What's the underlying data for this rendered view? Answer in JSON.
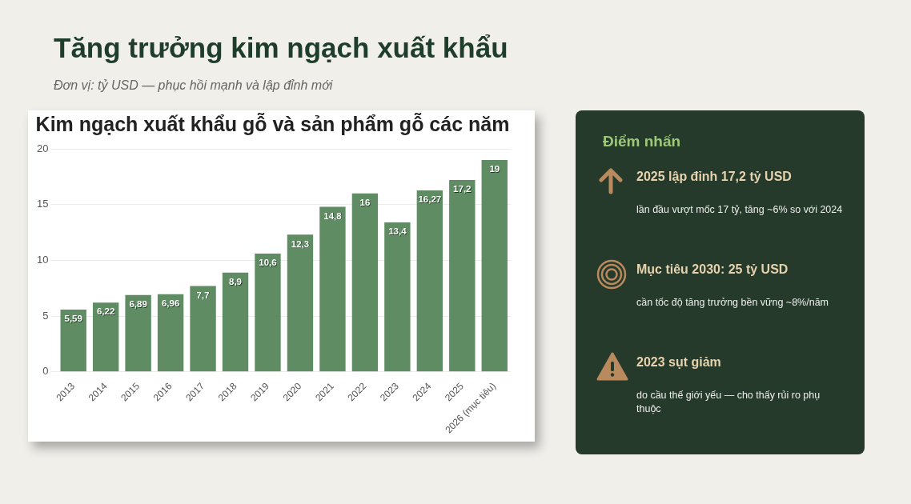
{
  "chart_data": [
    {
      "type": "bar",
      "title": "Kim ngạch xuất khẩu gỗ và sản phẩm gỗ các năm",
      "subtitle": "Đơn vị: tỷ USD — phục hồi mạnh và lập đỉnh mới",
      "annotations": [
        "Tăng trưởng kim ngạch xuất khẩu"
      ],
      "categories": [
        "2013",
        "2014",
        "2015",
        "2016",
        "2017",
        "2018",
        "2019",
        "2020",
        "2021",
        "2022",
        "2023",
        "2024",
        "2025",
        "2026 (mục tiêu)"
      ],
      "values": [
        5.59,
        6.22,
        6.89,
        6.96,
        7.7,
        8.9,
        10.6,
        12.3,
        14.8,
        16,
        13.4,
        16.27,
        17.2,
        19
      ],
      "value_labels": [
        "5,59",
        "6,22",
        "6,89",
        "6,96",
        "7,7",
        "8,9",
        "10,6",
        "12,3",
        "14,8",
        "16",
        "13,4",
        "16,27",
        "17,2",
        "19"
      ],
      "color": "#5f8c63",
      "ylim": [
        0,
        20
      ],
      "yticks": [
        0,
        5,
        10,
        15,
        20
      ],
      "grid": "y",
      "legend": false
    },
    {
      "type": "other",
      "title": "Điểm nhấn",
      "annotations": [
        "2025 lập đỉnh 17,2 tỷ USD",
        "lần đầu vượt mốc 17 tỷ, tăng ~6% so với 2024",
        "Mục tiêu 2030: 25 tỷ USD",
        "cần tốc độ tăng trưởng bền vững ~8%/năm",
        "2023 sụt giảm",
        "do cầu thế giới yếu — cho thấy rủi ro phụ thuộc"
      ]
    }
  ]
}
